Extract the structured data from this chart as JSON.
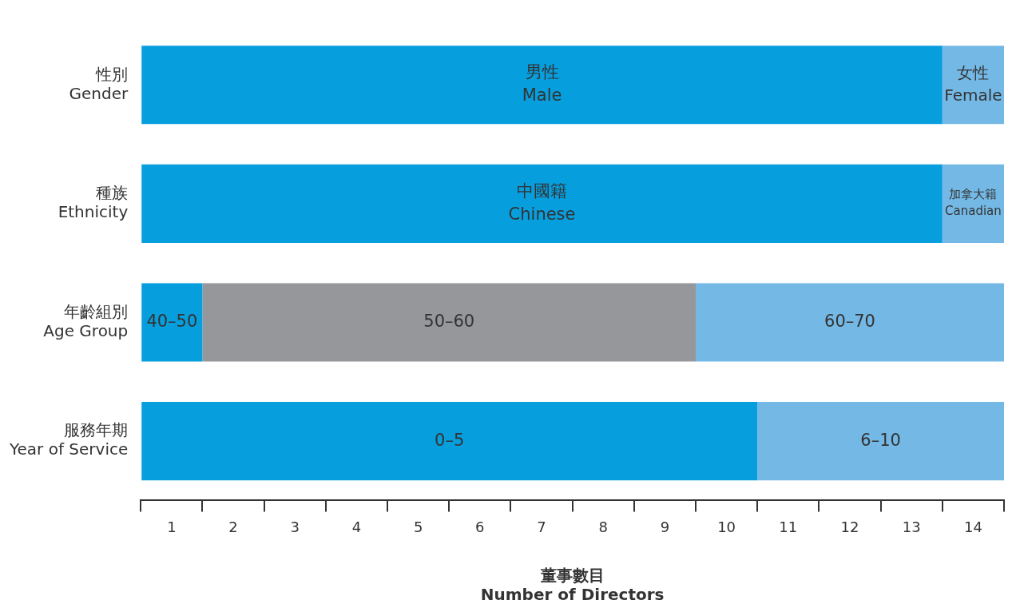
{
  "chart_data": {
    "type": "bar",
    "orientation": "horizontal",
    "stacked": true,
    "categories": [
      "性別\nGender",
      "種族\nEthnicity",
      "年齡組別\nAge Group",
      "服務年期\nYear of Service"
    ],
    "xlabel": "董事數目\nNumber of Directors",
    "xlim": [
      0,
      14
    ],
    "xticks": [
      {
        "value": 0,
        "label": null
      },
      {
        "value": 0.5,
        "label": "1"
      },
      {
        "value": 1,
        "label": null
      },
      {
        "value": 1.5,
        "label": "2"
      },
      {
        "value": 2,
        "label": null
      },
      {
        "value": 2.5,
        "label": "3"
      },
      {
        "value": 3,
        "label": null
      },
      {
        "value": 3.5,
        "label": "4"
      },
      {
        "value": 4,
        "label": null
      },
      {
        "value": 4.5,
        "label": "5"
      },
      {
        "value": 5,
        "label": null
      },
      {
        "value": 5.5,
        "label": "6"
      },
      {
        "value": 6,
        "label": null
      },
      {
        "value": 6.5,
        "label": "7"
      },
      {
        "value": 7,
        "label": null
      },
      {
        "value": 7.5,
        "label": "8"
      },
      {
        "value": 8,
        "label": null
      },
      {
        "value": 8.5,
        "label": "9"
      },
      {
        "value": 9,
        "label": null
      },
      {
        "value": 9.5,
        "label": "10"
      },
      {
        "value": 10,
        "label": null
      },
      {
        "value": 10.5,
        "label": "11"
      },
      {
        "value": 11,
        "label": null
      },
      {
        "value": 11.5,
        "label": "12"
      },
      {
        "value": 12,
        "label": null
      },
      {
        "value": 12.5,
        "label": "13"
      },
      {
        "value": 13,
        "label": null
      },
      {
        "value": 13.5,
        "label": "14"
      },
      {
        "value": 14,
        "label": null
      }
    ],
    "series": [
      {
        "colors": [
          "#079ede",
          "#079ede",
          "#079ede",
          "#079ede"
        ],
        "values": [
          13,
          13,
          1,
          10
        ],
        "value_labels": [
          "男性\nMale",
          "中國籍\nChinese",
          "40–50",
          "0–5"
        ]
      },
      {
        "colors": [
          "#74b9e6",
          "#74b9e6",
          "#96979a",
          "#74b9e6"
        ],
        "values": [
          1,
          1,
          8,
          4
        ],
        "value_labels": [
          "女性\nFemale",
          "加拿大籍\nCanadian",
          "50–60",
          "6–10"
        ]
      },
      {
        "colors": [
          "#74b9e6",
          "#74b9e6",
          "#74b9e6",
          "#74b9e6"
        ],
        "values": [
          null,
          null,
          5,
          null
        ],
        "value_labels": [
          null,
          null,
          "60–70",
          null
        ]
      }
    ],
    "legend": false
  }
}
